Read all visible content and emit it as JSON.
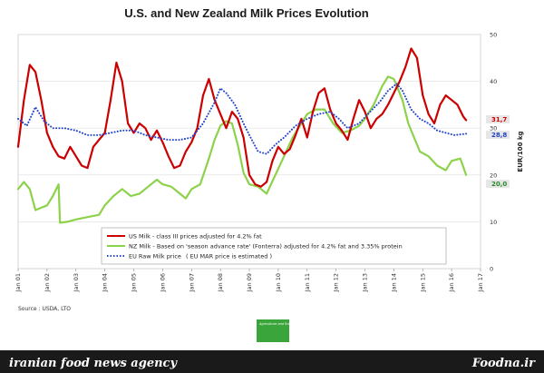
{
  "chart_data": {
    "type": "line",
    "title": "U.S. and New Zealand Milk Prices Evolution",
    "ylabel": "EUR/100 kg",
    "ylim": [
      0,
      50
    ],
    "yticks": [
      "0",
      "10",
      "20",
      "30",
      "40",
      "50"
    ],
    "x_start_year": 2001,
    "xlim_years": [
      2001,
      2017
    ],
    "xticks": [
      "Jan 01",
      "Jan 02",
      "Jan 03",
      "Jan 04",
      "Jan 05",
      "Jan 06",
      "Jan 07",
      "Jan 08",
      "Jan 09",
      "Jan 10",
      "Jan 11",
      "Jan 12",
      "Jan 13",
      "Jan 14",
      "Jan 15",
      "Jan 16",
      "Jan 17"
    ],
    "series": [
      {
        "name": "US Milk - class III prices adjusted for 4.2% fat",
        "color": "#cc0000",
        "style": "solid",
        "end_label": "31,7",
        "points": [
          [
            2001.0,
            26.0
          ],
          [
            2001.2,
            36.0
          ],
          [
            2001.4,
            43.5
          ],
          [
            2001.6,
            42.0
          ],
          [
            2001.8,
            36.0
          ],
          [
            2002.0,
            29.0
          ],
          [
            2002.2,
            26.0
          ],
          [
            2002.4,
            24.0
          ],
          [
            2002.6,
            23.5
          ],
          [
            2002.8,
            26.0
          ],
          [
            2003.0,
            24.0
          ],
          [
            2003.2,
            22.0
          ],
          [
            2003.4,
            21.5
          ],
          [
            2003.6,
            26.0
          ],
          [
            2003.8,
            27.5
          ],
          [
            2004.0,
            29.0
          ],
          [
            2004.2,
            36.0
          ],
          [
            2004.4,
            44.0
          ],
          [
            2004.6,
            40.0
          ],
          [
            2004.8,
            31.0
          ],
          [
            2005.0,
            29.0
          ],
          [
            2005.2,
            31.0
          ],
          [
            2005.4,
            30.0
          ],
          [
            2005.6,
            27.5
          ],
          [
            2005.8,
            29.5
          ],
          [
            2006.0,
            27.0
          ],
          [
            2006.2,
            24.0
          ],
          [
            2006.4,
            21.5
          ],
          [
            2006.6,
            22.0
          ],
          [
            2006.8,
            25.0
          ],
          [
            2007.0,
            27.0
          ],
          [
            2007.2,
            30.0
          ],
          [
            2007.4,
            37.0
          ],
          [
            2007.6,
            40.5
          ],
          [
            2007.8,
            36.0
          ],
          [
            2008.0,
            33.0
          ],
          [
            2008.2,
            30.0
          ],
          [
            2008.4,
            33.5
          ],
          [
            2008.6,
            32.0
          ],
          [
            2008.8,
            28.0
          ],
          [
            2009.0,
            20.0
          ],
          [
            2009.2,
            18.0
          ],
          [
            2009.4,
            17.5
          ],
          [
            2009.6,
            18.5
          ],
          [
            2009.8,
            23.0
          ],
          [
            2010.0,
            26.0
          ],
          [
            2010.2,
            24.5
          ],
          [
            2010.4,
            25.5
          ],
          [
            2010.6,
            28.5
          ],
          [
            2010.8,
            32.0
          ],
          [
            2011.0,
            28.0
          ],
          [
            2011.2,
            33.5
          ],
          [
            2011.4,
            37.5
          ],
          [
            2011.6,
            38.5
          ],
          [
            2011.8,
            34.0
          ],
          [
            2012.0,
            31.0
          ],
          [
            2012.2,
            29.5
          ],
          [
            2012.4,
            27.5
          ],
          [
            2012.6,
            32.0
          ],
          [
            2012.8,
            36.0
          ],
          [
            2013.0,
            33.5
          ],
          [
            2013.2,
            30.0
          ],
          [
            2013.4,
            32.0
          ],
          [
            2013.6,
            33.0
          ],
          [
            2013.8,
            35.0
          ],
          [
            2014.0,
            37.5
          ],
          [
            2014.2,
            40.0
          ],
          [
            2014.4,
            43.0
          ],
          [
            2014.6,
            47.0
          ],
          [
            2014.8,
            45.0
          ],
          [
            2015.0,
            37.0
          ],
          [
            2015.2,
            33.0
          ],
          [
            2015.4,
            31.0
          ],
          [
            2015.6,
            35.0
          ],
          [
            2015.8,
            37.0
          ],
          [
            2016.0,
            36.0
          ],
          [
            2016.2,
            35.0
          ],
          [
            2016.4,
            32.5
          ],
          [
            2016.5,
            31.7
          ]
        ]
      },
      {
        "name": "NZ Milk - Based on 'season advance rate' (Fonterra) adjusted for 4.2% fat and 3.35% protein",
        "color": "#8cd24a",
        "style": "solid",
        "end_label": "20,0",
        "points": [
          [
            2001.0,
            17.0
          ],
          [
            2001.2,
            18.5
          ],
          [
            2001.4,
            17.0
          ],
          [
            2001.6,
            12.5
          ],
          [
            2001.8,
            13.0
          ],
          [
            2002.0,
            13.5
          ],
          [
            2002.2,
            15.5
          ],
          [
            2002.4,
            18.0
          ],
          [
            2002.45,
            9.8
          ],
          [
            2002.7,
            10.0
          ],
          [
            2003.0,
            10.5
          ],
          [
            2003.4,
            11.0
          ],
          [
            2003.8,
            11.5
          ],
          [
            2004.0,
            13.5
          ],
          [
            2004.3,
            15.5
          ],
          [
            2004.6,
            17.0
          ],
          [
            2004.9,
            15.5
          ],
          [
            2005.2,
            16.0
          ],
          [
            2005.5,
            17.5
          ],
          [
            2005.8,
            19.0
          ],
          [
            2006.0,
            18.0
          ],
          [
            2006.3,
            17.5
          ],
          [
            2006.6,
            16.0
          ],
          [
            2006.8,
            15.0
          ],
          [
            2007.0,
            17.0
          ],
          [
            2007.3,
            18.0
          ],
          [
            2007.6,
            23.5
          ],
          [
            2007.8,
            27.5
          ],
          [
            2008.0,
            30.5
          ],
          [
            2008.2,
            31.5
          ],
          [
            2008.4,
            31.0
          ],
          [
            2008.6,
            26.5
          ],
          [
            2008.8,
            20.5
          ],
          [
            2009.0,
            18.0
          ],
          [
            2009.3,
            17.5
          ],
          [
            2009.6,
            16.0
          ],
          [
            2009.9,
            20.0
          ],
          [
            2010.2,
            24.0
          ],
          [
            2010.5,
            28.0
          ],
          [
            2010.8,
            31.0
          ],
          [
            2011.0,
            33.0
          ],
          [
            2011.3,
            34.0
          ],
          [
            2011.6,
            34.0
          ],
          [
            2011.9,
            31.0
          ],
          [
            2012.2,
            29.0
          ],
          [
            2012.5,
            29.5
          ],
          [
            2012.8,
            30.5
          ],
          [
            2013.0,
            32.0
          ],
          [
            2013.3,
            35.0
          ],
          [
            2013.6,
            39.0
          ],
          [
            2013.8,
            41.0
          ],
          [
            2014.0,
            40.5
          ],
          [
            2014.3,
            36.0
          ],
          [
            2014.5,
            31.0
          ],
          [
            2014.7,
            28.0
          ],
          [
            2014.9,
            25.0
          ],
          [
            2015.2,
            24.0
          ],
          [
            2015.5,
            22.0
          ],
          [
            2015.8,
            21.0
          ],
          [
            2016.0,
            23.0
          ],
          [
            2016.3,
            23.5
          ],
          [
            2016.5,
            20.0
          ]
        ]
      },
      {
        "name": "EU Raw Milk price",
        "color": "#2244cc",
        "style": "dotted",
        "end_label": "28,8",
        "points": [
          [
            2001.0,
            32.0
          ],
          [
            2001.3,
            30.5
          ],
          [
            2001.6,
            34.5
          ],
          [
            2001.9,
            31.5
          ],
          [
            2002.2,
            30.0
          ],
          [
            2002.6,
            30.0
          ],
          [
            2003.0,
            29.5
          ],
          [
            2003.4,
            28.5
          ],
          [
            2003.8,
            28.5
          ],
          [
            2004.2,
            29.0
          ],
          [
            2004.6,
            29.5
          ],
          [
            2005.0,
            29.5
          ],
          [
            2005.4,
            28.5
          ],
          [
            2005.8,
            28.0
          ],
          [
            2006.2,
            27.5
          ],
          [
            2006.6,
            27.5
          ],
          [
            2007.0,
            28.0
          ],
          [
            2007.4,
            31.0
          ],
          [
            2007.8,
            35.5
          ],
          [
            2008.0,
            38.5
          ],
          [
            2008.2,
            37.5
          ],
          [
            2008.5,
            35.0
          ],
          [
            2008.8,
            31.0
          ],
          [
            2009.0,
            28.5
          ],
          [
            2009.3,
            25.0
          ],
          [
            2009.6,
            24.5
          ],
          [
            2009.9,
            26.5
          ],
          [
            2010.2,
            28.0
          ],
          [
            2010.6,
            30.5
          ],
          [
            2011.0,
            32.0
          ],
          [
            2011.4,
            33.0
          ],
          [
            2011.8,
            33.5
          ],
          [
            2012.1,
            32.0
          ],
          [
            2012.4,
            30.0
          ],
          [
            2012.8,
            31.0
          ],
          [
            2013.1,
            33.0
          ],
          [
            2013.5,
            35.5
          ],
          [
            2013.8,
            38.0
          ],
          [
            2014.1,
            39.5
          ],
          [
            2014.3,
            38.0
          ],
          [
            2014.6,
            34.0
          ],
          [
            2014.9,
            32.0
          ],
          [
            2015.2,
            31.0
          ],
          [
            2015.5,
            29.5
          ],
          [
            2015.8,
            29.0
          ],
          [
            2016.1,
            28.5
          ],
          [
            2016.5,
            28.8
          ]
        ]
      }
    ],
    "legend_note": "( EU MAR price is estimated )",
    "source": "Source : USDA, LTO"
  },
  "logo": {
    "text": "Agriculture and Rural Development",
    "color": "#3aa53a"
  },
  "footer": {
    "left_text": "iranian food news agency",
    "right_text": "Foodna.ir",
    "background": "#1a1a1a"
  }
}
